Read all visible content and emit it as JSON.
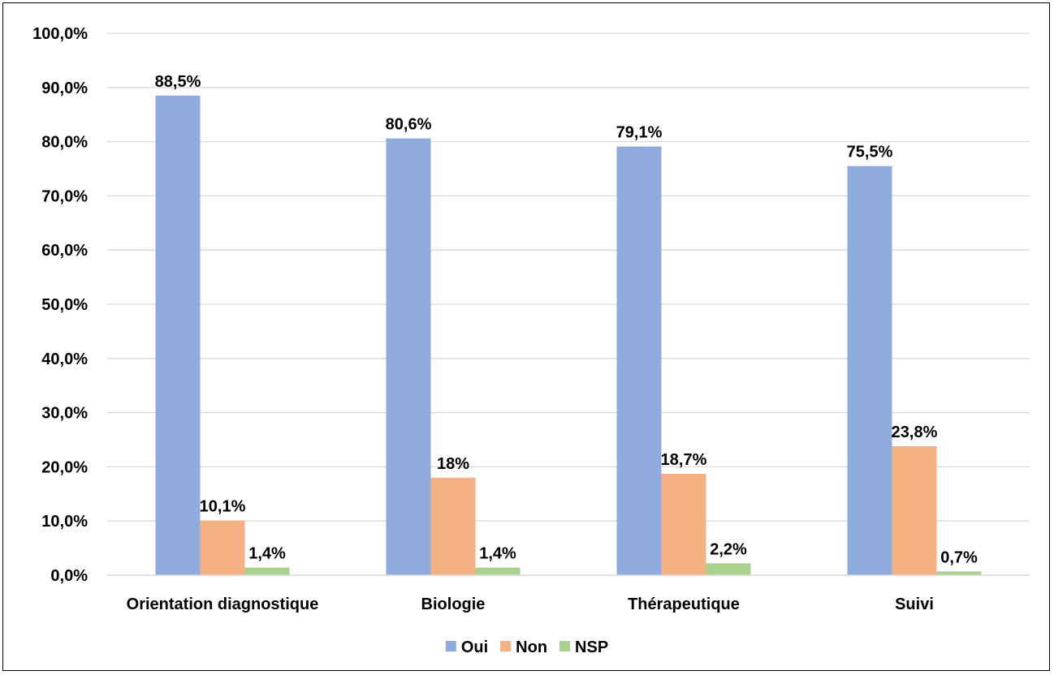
{
  "chart_data": {
    "type": "bar",
    "categories": [
      "Orientation diagnostique",
      "Biologie",
      "Thérapeutique",
      "Suivi"
    ],
    "series": [
      {
        "name": "Oui",
        "color": "#8faadc",
        "values": [
          88.5,
          80.6,
          79.1,
          75.5
        ],
        "labels": [
          "88,5%",
          "80,6%",
          "79,1%",
          "75,5%"
        ]
      },
      {
        "name": "Non",
        "color": "#f4b183",
        "values": [
          10.1,
          18.0,
          18.7,
          23.8
        ],
        "labels": [
          "10,1%",
          "18%",
          "18,7%",
          "23,8%"
        ]
      },
      {
        "name": "NSP",
        "color": "#a9d18e",
        "values": [
          1.4,
          1.4,
          2.2,
          0.7
        ],
        "labels": [
          "1,4%",
          "1,4%",
          "2,2%",
          "0,7%"
        ]
      }
    ],
    "yticks": [
      "0,0%",
      "10,0%",
      "20,0%",
      "30,0%",
      "40,0%",
      "50,0%",
      "60,0%",
      "70,0%",
      "80,0%",
      "90,0%",
      "100,0%"
    ],
    "ylim": [
      0,
      100
    ],
    "grid": true,
    "legend": "bottom-center",
    "gridline_color": "#d9d9d9"
  }
}
